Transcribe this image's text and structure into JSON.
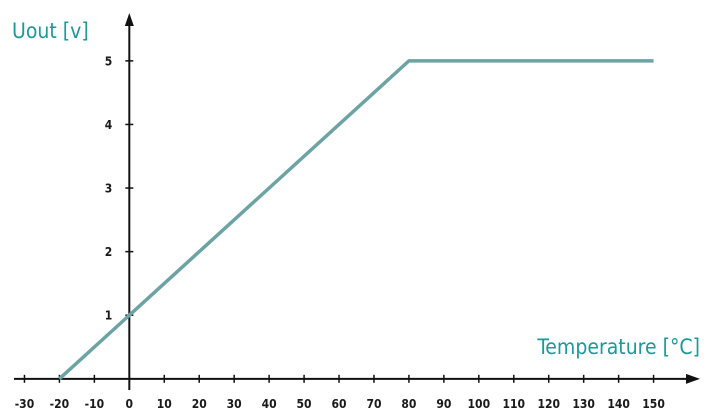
{
  "chart_data": {
    "type": "line",
    "title": "",
    "xlabel": "Temperature [°C]",
    "ylabel": "Uout [v]",
    "xticks": [
      -30,
      -20,
      -10,
      0,
      10,
      20,
      30,
      40,
      50,
      60,
      70,
      80,
      90,
      100,
      110,
      120,
      130,
      140,
      150
    ],
    "yticks": [
      1,
      2,
      3,
      4,
      5
    ],
    "xlim": [
      -37,
      165
    ],
    "ylim": [
      -0.05,
      5.8
    ],
    "grid": false,
    "series": [
      {
        "x": [
          -20,
          80,
          150
        ],
        "y": [
          0,
          5,
          5
        ],
        "color": "#6da3a3"
      }
    ],
    "axis_color": "#111111",
    "title_color": "#1a9a99"
  }
}
